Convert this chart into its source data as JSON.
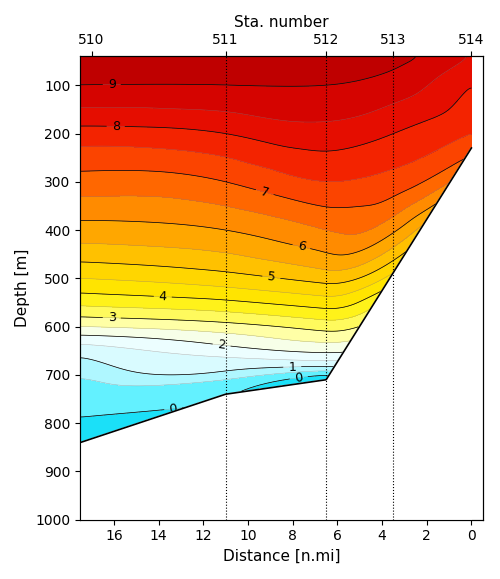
{
  "title_top": "Sta. number",
  "station_labels": [
    "510",
    "511",
    "512",
    "513",
    "514"
  ],
  "station_distances": [
    17.0,
    11.0,
    6.5,
    3.5,
    0.0
  ],
  "station_dashed_lines": [
    11.0,
    6.5,
    3.5
  ],
  "xlabel": "Distance [n.mi]",
  "ylabel": "Depth [m]",
  "xlim_left": 17.5,
  "xlim_right": -0.5,
  "ylim_bottom": 1000,
  "ylim_top": 40,
  "xticks": [
    16,
    14,
    12,
    10,
    8,
    6,
    4,
    2,
    0
  ],
  "yticks": [
    100,
    200,
    300,
    400,
    500,
    600,
    700,
    800,
    900,
    1000
  ],
  "temp_min": -1.0,
  "temp_max": 10.0,
  "figsize": [
    5.0,
    5.79
  ],
  "dpi": 100,
  "seafloor_dist": [
    0.0,
    6.5,
    11.0,
    17.5
  ],
  "seafloor_depth": [
    230,
    710,
    740,
    840
  ],
  "colormap": [
    [
      0.0,
      "#00e8ff"
    ],
    [
      0.04,
      "#00cfef"
    ],
    [
      0.09,
      "#33eeff"
    ],
    [
      0.14,
      "#99f4ff"
    ],
    [
      0.18,
      "#ccfaff"
    ],
    [
      0.23,
      "#e8fdff"
    ],
    [
      0.27,
      "#f0ffff"
    ],
    [
      0.32,
      "#ffffd0"
    ],
    [
      0.36,
      "#ffff80"
    ],
    [
      0.45,
      "#ffee00"
    ],
    [
      0.55,
      "#ffcc00"
    ],
    [
      0.64,
      "#ff9900"
    ],
    [
      0.73,
      "#ff5500"
    ],
    [
      0.82,
      "#ee1100"
    ],
    [
      0.91,
      "#cc0000"
    ],
    [
      1.0,
      "#990000"
    ]
  ]
}
